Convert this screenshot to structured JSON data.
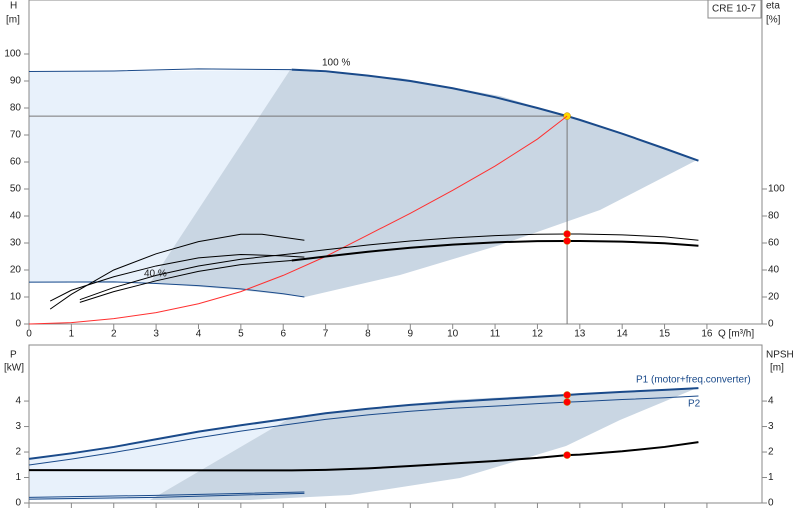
{
  "chart_data": [
    {
      "type": "line",
      "title": "CRE 10-7",
      "xlabel": "Q [m³/h]",
      "ylabel": [
        "H",
        "[m]"
      ],
      "y2label": [
        "eta",
        "[%]"
      ],
      "xlim": [
        0,
        17.3
      ],
      "xticks": [
        0,
        1,
        2,
        3,
        4,
        5,
        6,
        7,
        8,
        9,
        10,
        11,
        12,
        13,
        14,
        15,
        16
      ],
      "ylim": [
        0,
        120
      ],
      "yticks": [
        0,
        10,
        20,
        30,
        40,
        50,
        60,
        70,
        80,
        90,
        100
      ],
      "y2lim": [
        0,
        240
      ],
      "y2ticks": [
        0,
        20,
        40,
        60,
        80,
        100
      ],
      "annotations": [
        "100 %",
        "40 %"
      ],
      "operating_point": {
        "x": 12.7,
        "y": 77
      },
      "series": [
        {
          "color": "#1a4a8a",
          "width": 1,
          "x": [
            0,
            2,
            4,
            6.2
          ],
          "values": [
            93.5,
            93.7,
            94.5,
            94.2
          ]
        },
        {
          "color": "#1a4a8a",
          "width": 2,
          "marker": "#ffd700",
          "x": [
            6.2,
            7,
            8,
            9,
            10,
            11,
            12,
            12.7,
            13,
            14,
            15,
            15.8
          ],
          "values": [
            94.2,
            93.6,
            92,
            90,
            87.3,
            84,
            80,
            77,
            75.6,
            70.5,
            65,
            60.5
          ]
        },
        {
          "color": "#1a4a8a",
          "width": 1,
          "x": [
            0,
            2,
            3,
            4,
            5,
            6,
            6.5
          ],
          "values": [
            15.5,
            15.6,
            15,
            14.2,
            13,
            11.2,
            10
          ]
        },
        {
          "color": "#ff3030",
          "width": 1,
          "x": [
            0,
            1,
            2,
            3,
            4,
            5,
            6,
            7,
            8,
            9,
            10,
            11,
            12,
            12.7
          ],
          "values": [
            0,
            0.5,
            2,
            4.2,
            7.5,
            12,
            18,
            25,
            33,
            41,
            49.5,
            58.5,
            68.5,
            77
          ]
        },
        {
          "color": "#000000",
          "width": 2,
          "axis": "y2",
          "marker": "#ff0000",
          "x": [
            6.2,
            7,
            8,
            9,
            10,
            11,
            12,
            12.7,
            13,
            14,
            15,
            15.8
          ],
          "values": [
            47,
            50,
            53.5,
            56.5,
            58.8,
            60.5,
            61.4,
            61.5,
            61.5,
            61,
            59.8,
            58
          ]
        },
        {
          "color": "#000000",
          "width": 1,
          "axis": "y2",
          "marker": "#ff0000",
          "x": [
            6.2,
            7,
            8,
            9,
            10,
            11,
            12,
            12.7,
            13,
            14,
            15,
            15.8
          ],
          "values": [
            52,
            55,
            58.5,
            61.5,
            63.8,
            65.5,
            66.5,
            66.7,
            66.7,
            66,
            64.5,
            62
          ]
        },
        {
          "color": "#000000",
          "width": 1,
          "axis": "y2",
          "x": [
            0.5,
            1,
            2,
            3,
            4,
            5,
            5.5,
            6.5
          ],
          "values": [
            11,
            22,
            40,
            52,
            61,
            66.5,
            66.5,
            62
          ]
        },
        {
          "color": "#000000",
          "width": 1,
          "axis": "y2",
          "x": [
            0.5,
            1,
            2,
            3,
            4,
            5,
            6,
            6.5
          ],
          "values": [
            17,
            25,
            35,
            43,
            49,
            51.5,
            50.5,
            49.5
          ]
        },
        {
          "color": "#000000",
          "width": 1,
          "axis": "y2",
          "x": [
            1.2,
            2,
            3,
            4,
            5,
            6.2
          ],
          "values": [
            16,
            24,
            32,
            39,
            44,
            47
          ]
        },
        {
          "color": "#000000",
          "width": 1,
          "axis": "y2",
          "x": [
            1.2,
            2,
            3,
            4,
            5,
            6.2
          ],
          "values": [
            18,
            27,
            36,
            43,
            48,
            52
          ]
        }
      ]
    },
    {
      "type": "line",
      "ylabel": [
        "P",
        "[kW]"
      ],
      "y2label": [
        "NPSH",
        "[m]"
      ],
      "ylim": [
        0,
        6.2
      ],
      "yticks": [
        0,
        1,
        2,
        3,
        4
      ],
      "y2lim": [
        0,
        6.2
      ],
      "y2ticks": [
        0,
        1,
        2,
        3,
        4
      ],
      "annotations": [
        "P1 (motor+freq.converter)",
        "P2"
      ],
      "series": [
        {
          "color": "#1a4a8a",
          "width": 2,
          "marker": "#ff0000",
          "x": [
            0,
            1,
            2,
            3,
            4,
            5,
            6.2,
            7,
            8,
            9,
            10,
            11,
            12,
            12.7,
            13,
            14,
            15,
            15.8
          ],
          "values": [
            1.73,
            1.95,
            2.2,
            2.5,
            2.8,
            3.05,
            3.33,
            3.52,
            3.7,
            3.85,
            3.97,
            4.07,
            4.17,
            4.24,
            4.27,
            4.36,
            4.44,
            4.51
          ]
        },
        {
          "color": "#1a4a8a",
          "width": 1,
          "marker": "#ff0000",
          "x": [
            0,
            1,
            2,
            3,
            4,
            5,
            6.2,
            7,
            8,
            9,
            10,
            11,
            12,
            12.7,
            13,
            14,
            15,
            15.8
          ],
          "values": [
            1.49,
            1.72,
            1.98,
            2.27,
            2.56,
            2.82,
            3.1,
            3.28,
            3.46,
            3.6,
            3.72,
            3.8,
            3.9,
            3.96,
            3.98,
            4.06,
            4.13,
            4.2
          ]
        },
        {
          "color": "#000000",
          "width": 2,
          "axis": "y2",
          "marker": "#ff0000",
          "x": [
            0,
            6.2,
            7,
            8,
            9,
            10,
            11,
            12,
            12.7,
            13,
            14,
            15,
            15.8
          ],
          "values": [
            1.29,
            1.28,
            1.3,
            1.36,
            1.45,
            1.55,
            1.65,
            1.77,
            1.88,
            1.9,
            2.03,
            2.2,
            2.39
          ]
        },
        {
          "color": "#1a4a8a",
          "width": 1,
          "x": [
            0,
            3,
            6.5
          ],
          "values": [
            0.22,
            0.3,
            0.43
          ]
        },
        {
          "color": "#1a4a8a",
          "width": 1,
          "x": [
            0,
            3,
            6.5
          ],
          "values": [
            0.15,
            0.22,
            0.38
          ]
        }
      ]
    }
  ]
}
